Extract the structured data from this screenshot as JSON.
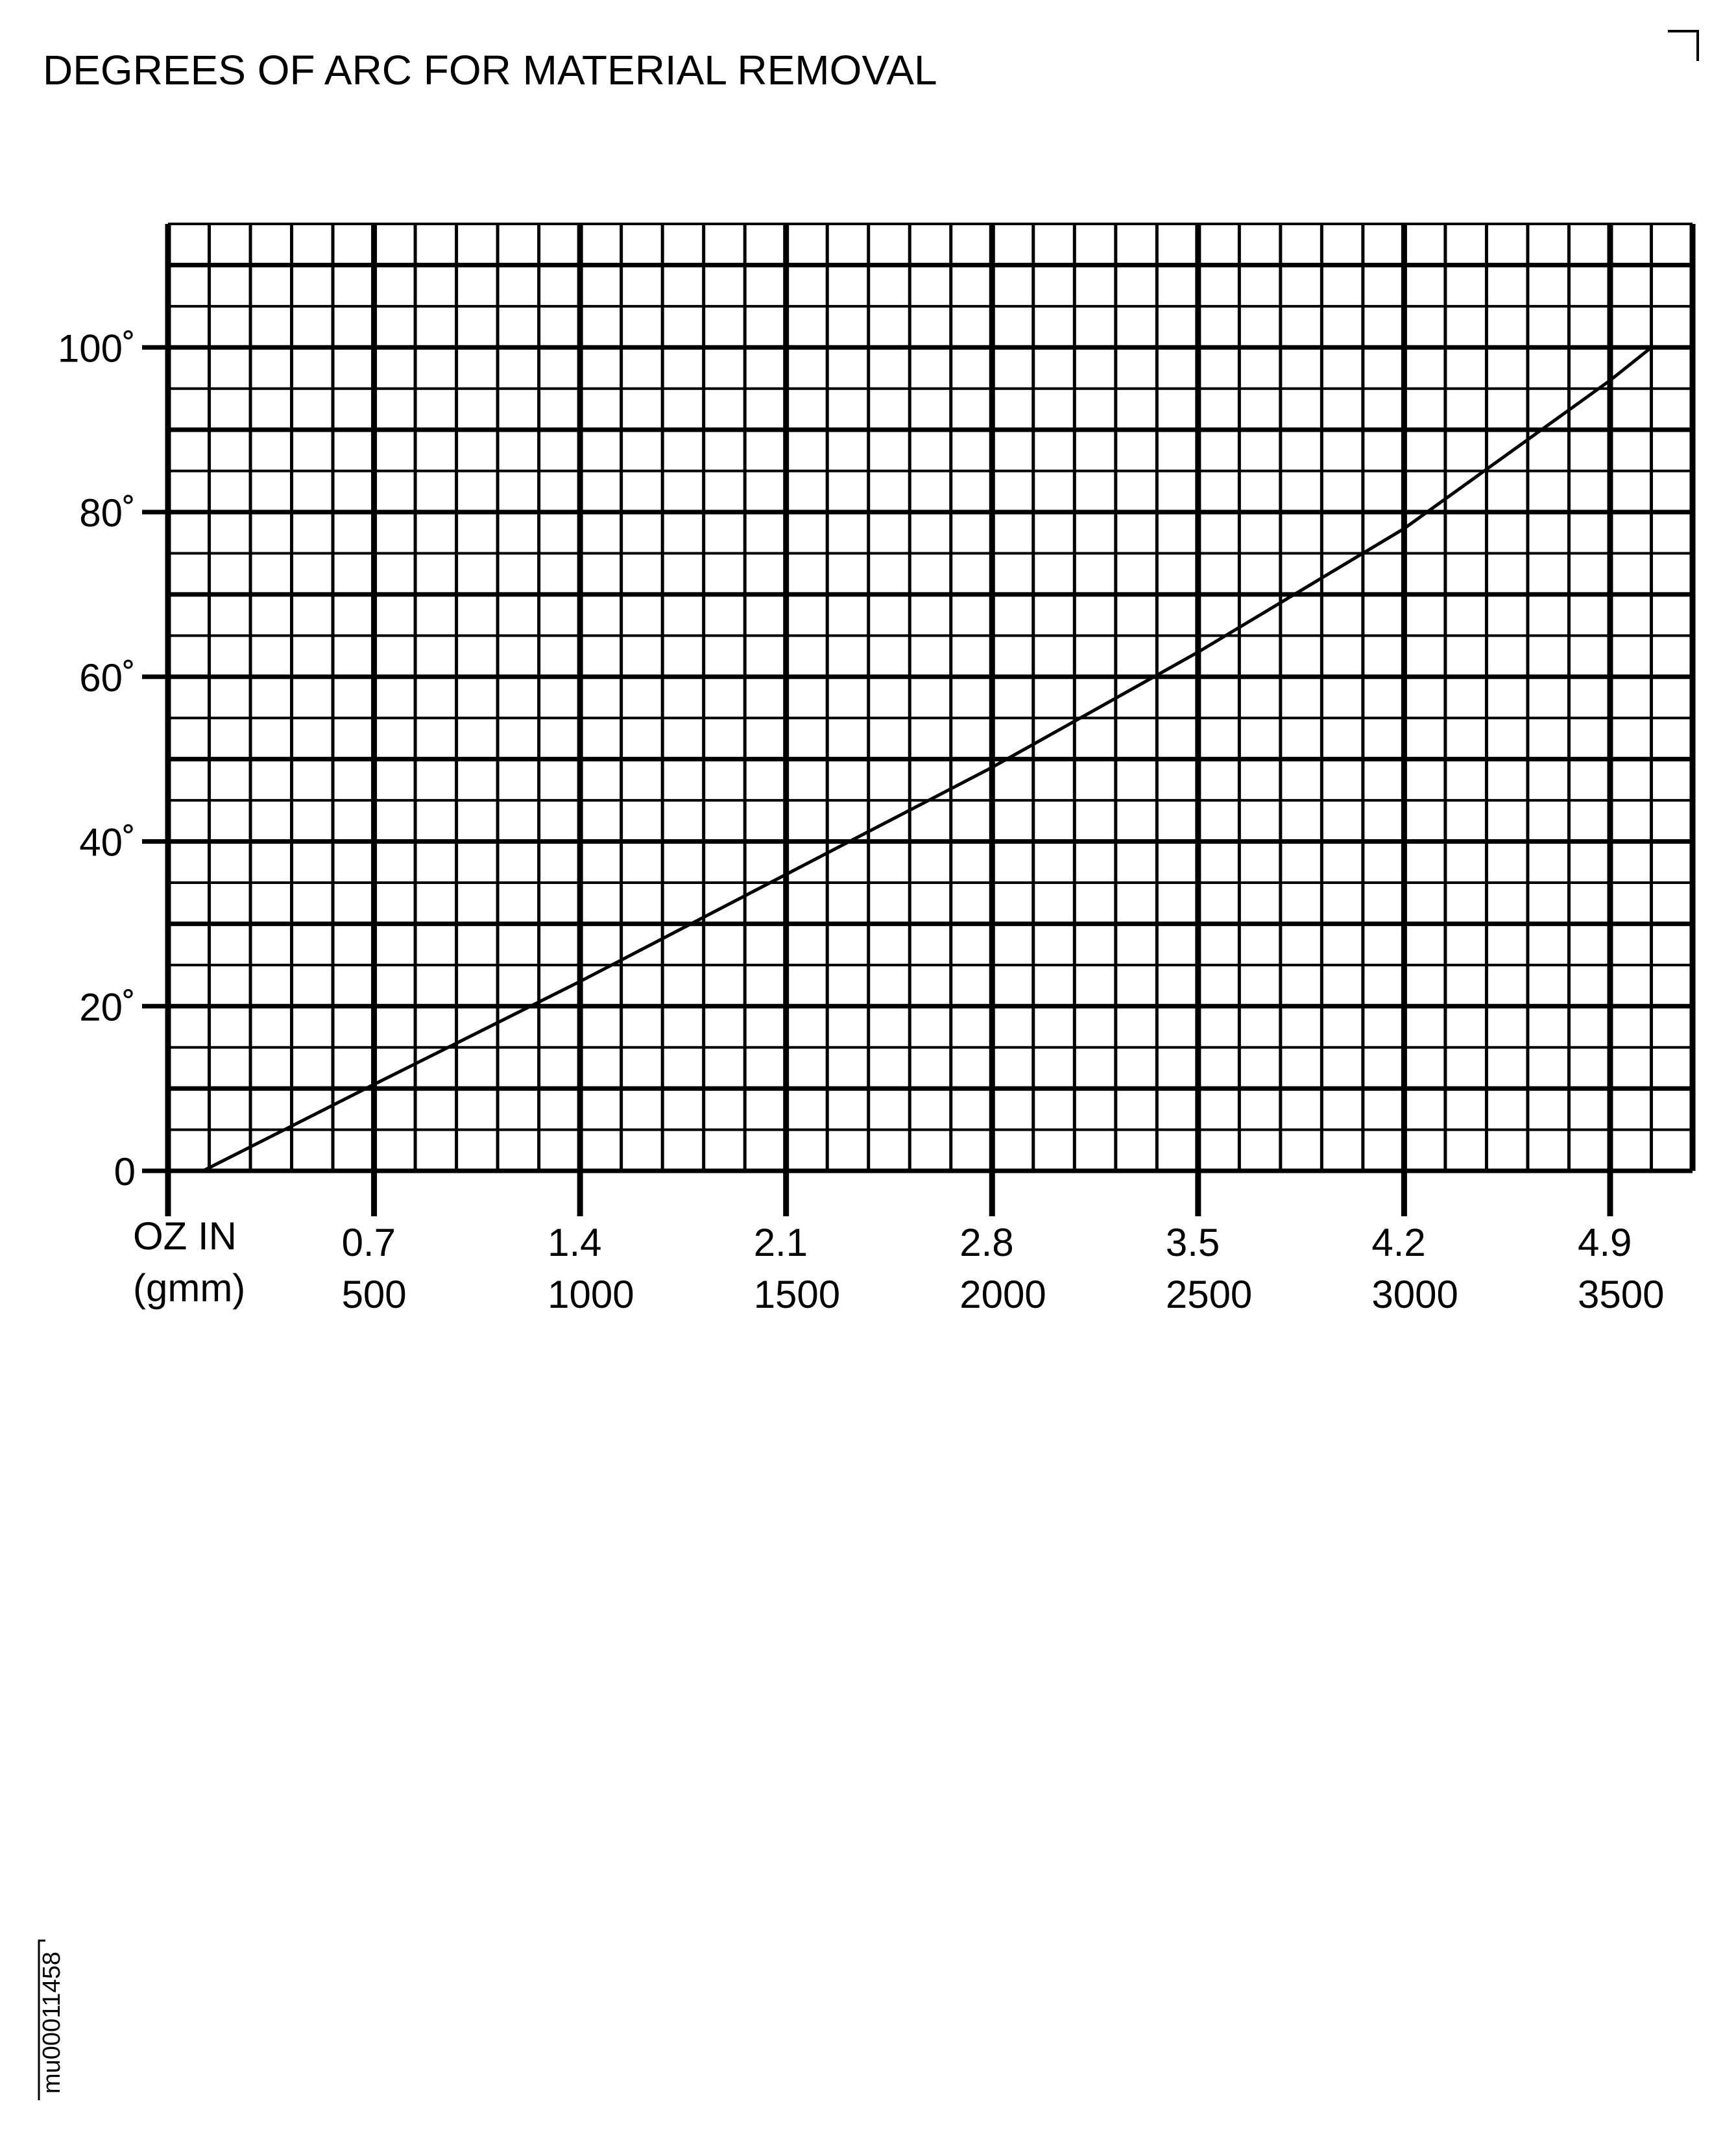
{
  "title": "DEGREES OF ARC FOR MATERIAL REMOVAL",
  "figure_id": "mu00011458",
  "chart_data": {
    "type": "line",
    "title": "DEGREES OF ARC FOR MATERIAL REMOVAL",
    "xlabel": [
      "OZ IN",
      "(gmm)"
    ],
    "ylabel": "Degrees of arc",
    "xlim": [
      0,
      3700
    ],
    "ylim": [
      0,
      115
    ],
    "grid": true,
    "x_major_step": 500,
    "x_minor_step": 100,
    "y_major_step": 10,
    "y_minor_step": 5,
    "x_ticks": [
      {
        "gmm": 500,
        "oz_in": "0.7",
        "label": "500"
      },
      {
        "gmm": 1000,
        "oz_in": "1.4",
        "label": "1000"
      },
      {
        "gmm": 1500,
        "oz_in": "2.1",
        "label": "1500"
      },
      {
        "gmm": 2000,
        "oz_in": "2.8",
        "label": "2000"
      },
      {
        "gmm": 2500,
        "oz_in": "3.5",
        "label": "2500"
      },
      {
        "gmm": 3000,
        "oz_in": "4.2",
        "label": "3000"
      },
      {
        "gmm": 3500,
        "oz_in": "4.9",
        "label": "3500"
      }
    ],
    "y_ticks": [
      {
        "value": 0,
        "label": "0"
      },
      {
        "value": 20,
        "label": "20˚"
      },
      {
        "value": 40,
        "label": "40˚"
      },
      {
        "value": 60,
        "label": "60˚"
      },
      {
        "value": 80,
        "label": "80˚"
      },
      {
        "value": 100,
        "label": "100˚"
      }
    ],
    "series": [
      {
        "name": "Degrees of arc",
        "x": [
          85,
          500,
          1000,
          1500,
          2000,
          2500,
          3000,
          3500,
          3600
        ],
        "y": [
          0,
          10.5,
          23,
          36,
          49,
          63,
          78,
          96,
          100
        ]
      }
    ]
  }
}
